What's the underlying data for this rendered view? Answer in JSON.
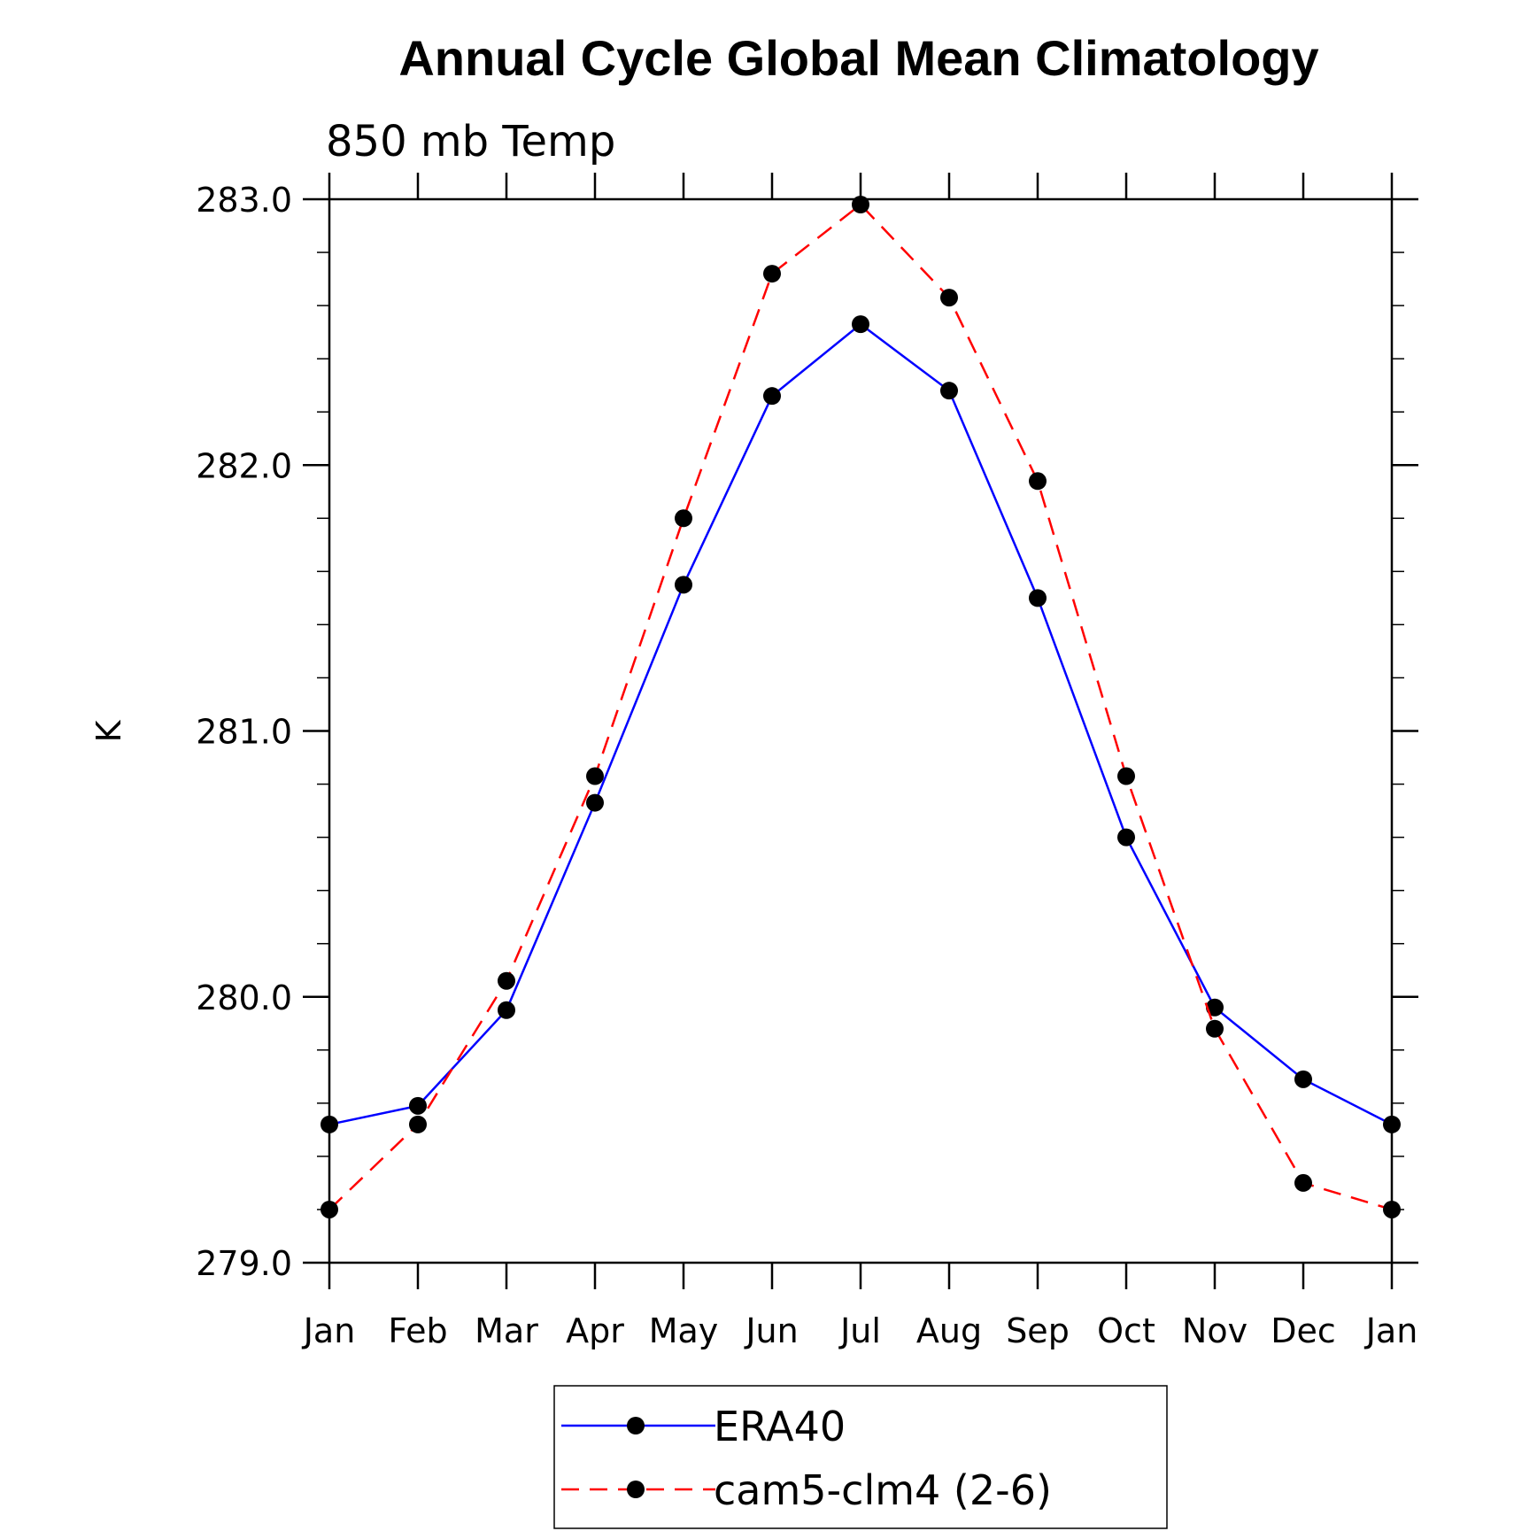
{
  "chart_data": {
    "type": "line",
    "title": "Annual Cycle Global Mean Climatology",
    "subtitle": "850 mb Temp",
    "xlabel": "",
    "ylabel": "K",
    "categories": [
      "Jan",
      "Feb",
      "Mar",
      "Apr",
      "May",
      "Jun",
      "Jul",
      "Aug",
      "Sep",
      "Oct",
      "Nov",
      "Dec",
      "Jan"
    ],
    "ylim": [
      279.0,
      283.0
    ],
    "yticks": [
      "279.0",
      "280.0",
      "281.0",
      "282.0",
      "283.0"
    ],
    "grid": false,
    "legend_position": "bottom-center",
    "series": [
      {
        "name": "ERA40",
        "color": "#0000ff",
        "line_style": "solid",
        "marker": "filled-circle",
        "values": [
          279.52,
          279.59,
          279.95,
          280.73,
          281.55,
          282.26,
          282.53,
          282.28,
          281.5,
          280.6,
          279.96,
          279.69,
          279.52
        ]
      },
      {
        "name": "cam5-clm4 (2-6)",
        "color": "#ff0000",
        "line_style": "dashed",
        "marker": "filled-circle",
        "values": [
          279.2,
          279.52,
          280.06,
          280.83,
          281.8,
          282.72,
          282.98,
          282.63,
          281.94,
          280.83,
          279.88,
          279.3,
          279.2
        ]
      }
    ]
  }
}
